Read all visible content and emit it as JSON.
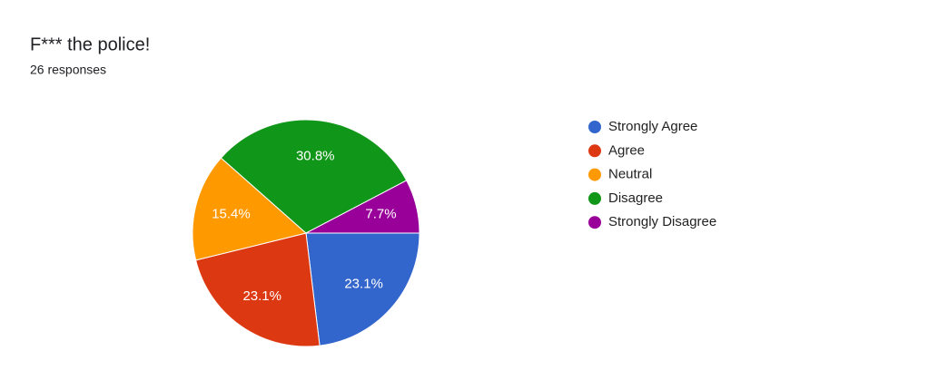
{
  "chart_data": {
    "type": "pie",
    "title": "F*** the police!",
    "subtitle": "26 responses",
    "categories": [
      "Strongly Agree",
      "Agree",
      "Neutral",
      "Disagree",
      "Strongly Disagree"
    ],
    "values": [
      23.1,
      23.1,
      15.4,
      30.8,
      7.7
    ],
    "value_labels": [
      "23.1%",
      "23.1%",
      "15.4%",
      "30.8%",
      "7.7%"
    ],
    "colors": [
      "#3366cc",
      "#dc3912",
      "#ff9900",
      "#109618",
      "#990099"
    ],
    "legend": "right"
  }
}
